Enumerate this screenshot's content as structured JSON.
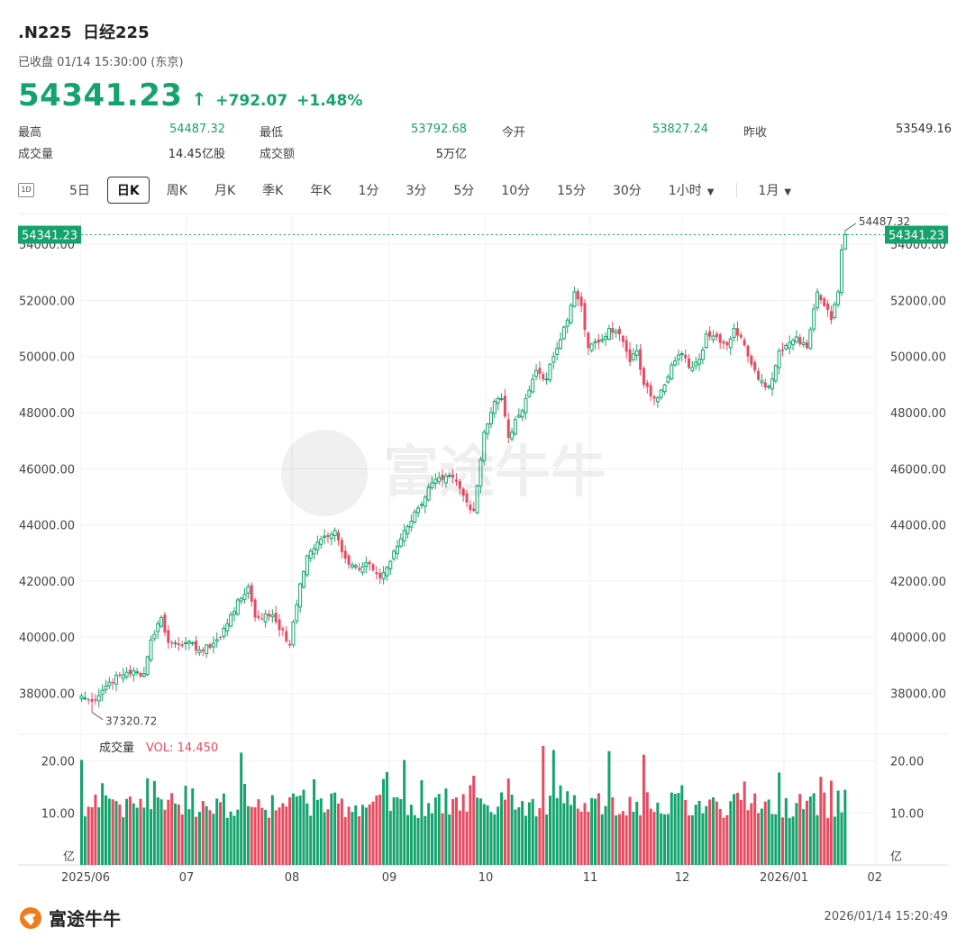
{
  "header": {
    "symbol": ".N225",
    "name": "日经225",
    "status": "已收盘 01/14 15:30:00 (东京)",
    "price": "54341.23",
    "change": "+792.07",
    "change_pct": "+1.48%"
  },
  "stats": {
    "high_label": "最高",
    "high": "54487.32",
    "low_label": "最低",
    "low": "53792.68",
    "open_label": "今开",
    "open": "53827.24",
    "prev_label": "昨收",
    "prev": "53549.16",
    "volume_label": "成交量",
    "volume": "14.45亿股",
    "turnover_label": "成交额",
    "turnover": "5万亿"
  },
  "tabs": {
    "icon_text": "1D",
    "items": [
      "5日",
      "日K",
      "周K",
      "月K",
      "季K",
      "年K",
      "1分",
      "3分",
      "5分",
      "10分",
      "15分",
      "30分"
    ],
    "active": "日K",
    "dropdown1": "1小时",
    "dropdown2": "1月"
  },
  "colors": {
    "up": "#14a36d",
    "down": "#e84a5f"
  },
  "chart_data": {
    "type": "candlestick",
    "y_ticks": [
      38000,
      40000,
      42000,
      44000,
      46000,
      48000,
      50000,
      52000,
      54000
    ],
    "y_tick_labels": [
      "38000.00",
      "40000.00",
      "42000.00",
      "44000.00",
      "46000.00",
      "48000.00",
      "50000.00",
      "52000.00",
      "54000.00"
    ],
    "ylim": [
      36700,
      55000
    ],
    "x_labels": [
      "2025/06",
      "07",
      "08",
      "09",
      "10",
      "11",
      "12",
      "2026/01",
      "02"
    ],
    "current_price": 54341.23,
    "current_price_label": "54341.23",
    "high_annotation": "54487.32",
    "low_annotation": "37320.72",
    "high_value": 54487.32,
    "low_value": 37320.72,
    "volume": {
      "label": "成交量",
      "vol_text": "VOL: 14.450",
      "unit": "亿",
      "y_ticks": [
        10,
        20
      ],
      "y_tick_labels": [
        "10.00",
        "20.00"
      ],
      "ylim": [
        0,
        23.4
      ]
    },
    "anchors": [
      [
        0,
        37900
      ],
      [
        3,
        37700
      ],
      [
        8,
        38400
      ],
      [
        13,
        38750
      ],
      [
        18,
        38700
      ],
      [
        20,
        39900
      ],
      [
        23,
        40700
      ],
      [
        25,
        39800
      ],
      [
        30,
        39800
      ],
      [
        35,
        39500
      ],
      [
        40,
        40000
      ],
      [
        43,
        40800
      ],
      [
        48,
        41800
      ],
      [
        50,
        40700
      ],
      [
        55,
        40800
      ],
      [
        60,
        39700
      ],
      [
        63,
        41900
      ],
      [
        65,
        42900
      ],
      [
        70,
        43600
      ],
      [
        73,
        43800
      ],
      [
        76,
        42800
      ],
      [
        80,
        42400
      ],
      [
        83,
        42600
      ],
      [
        86,
        42100
      ],
      [
        89,
        42700
      ],
      [
        93,
        43800
      ],
      [
        97,
        44600
      ],
      [
        101,
        45500
      ],
      [
        104,
        45600
      ],
      [
        107,
        45700
      ],
      [
        111,
        44800
      ],
      [
        113,
        44500
      ],
      [
        116,
        47300
      ],
      [
        119,
        48400
      ],
      [
        121,
        48500
      ],
      [
        123,
        47100
      ],
      [
        126,
        47900
      ],
      [
        128,
        48500
      ],
      [
        131,
        49500
      ],
      [
        134,
        49200
      ],
      [
        136,
        50000
      ],
      [
        138,
        50600
      ],
      [
        140,
        51300
      ],
      [
        142,
        52300
      ],
      [
        144,
        51800
      ],
      [
        146,
        50300
      ],
      [
        149,
        50500
      ],
      [
        152,
        51000
      ],
      [
        155,
        50800
      ],
      [
        158,
        49800
      ],
      [
        160,
        50200
      ],
      [
        162,
        49000
      ],
      [
        165,
        48500
      ],
      [
        167,
        48800
      ],
      [
        170,
        49700
      ],
      [
        173,
        50100
      ],
      [
        175,
        49600
      ],
      [
        178,
        49900
      ],
      [
        180,
        50800
      ],
      [
        183,
        50700
      ],
      [
        186,
        50400
      ],
      [
        188,
        51000
      ],
      [
        191,
        50400
      ],
      [
        194,
        49500
      ],
      [
        197,
        48900
      ],
      [
        199,
        49200
      ],
      [
        201,
        50200
      ],
      [
        204,
        50500
      ],
      [
        206,
        50700
      ],
      [
        209,
        50300
      ],
      [
        212,
        52300
      ],
      [
        214,
        51800
      ],
      [
        216,
        51300
      ],
      [
        218,
        52300
      ],
      [
        219,
        53800
      ],
      [
        220,
        54341
      ]
    ],
    "volume_spikes": [
      [
        0,
        20.2
      ],
      [
        46,
        21.6
      ],
      [
        93,
        20.2
      ],
      [
        133,
        22.9
      ],
      [
        136,
        22.1
      ],
      [
        152,
        21.9
      ],
      [
        162,
        21.2
      ],
      [
        216,
        16.2
      ]
    ]
  },
  "footer": {
    "brand": "富途牛牛",
    "timestamp": "2026/01/14 15:20:49"
  }
}
